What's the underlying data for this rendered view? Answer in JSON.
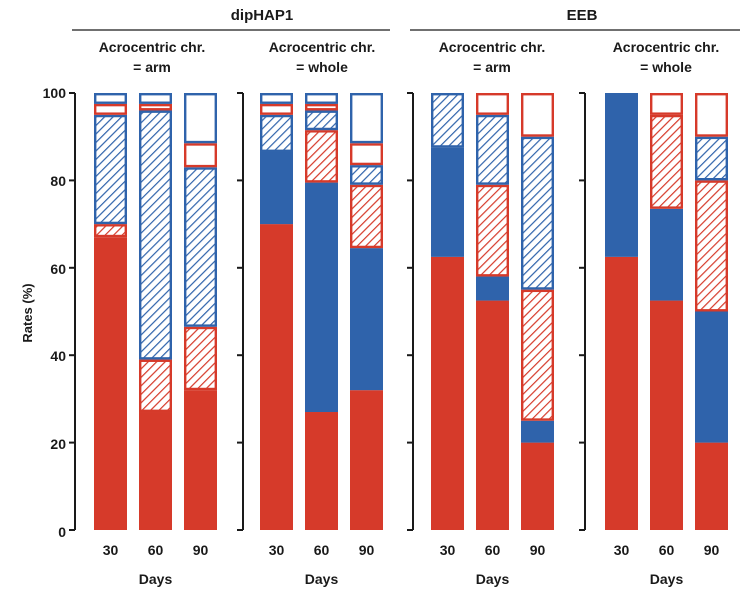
{
  "figure": {
    "group_titles": [
      "dipHAP1",
      "EEB"
    ],
    "group_title_colors": [
      "#7f87b8",
      "#8c8c8c"
    ],
    "ylabel": "Rates (%)",
    "xlabel": "Days",
    "yticks": [
      "0",
      "20",
      "40",
      "60",
      "80",
      "100"
    ]
  },
  "colors": {
    "red": "#d63a2a",
    "blue": "#2f63ab"
  },
  "chart_data": [
    {
      "type": "bar",
      "stacked": true,
      "group": "dipHAP1",
      "title": "Acrocentric chr.\n= arm",
      "categories": [
        "30",
        "60",
        "90"
      ],
      "xlabel": "Days",
      "ylabel": "Rates (%)",
      "ylim": [
        0,
        100
      ],
      "segments": [
        [
          {
            "value": 67,
            "color": "red",
            "style": "solid"
          },
          {
            "value": 3,
            "color": "red",
            "style": "hatched"
          },
          {
            "value": 25,
            "color": "blue",
            "style": "hatched"
          },
          {
            "value": 2.5,
            "color": "red",
            "style": "outline"
          },
          {
            "value": 2.5,
            "color": "blue",
            "style": "outline"
          }
        ],
        [
          {
            "value": 27,
            "color": "red",
            "style": "solid"
          },
          {
            "value": 12,
            "color": "red",
            "style": "hatched"
          },
          {
            "value": 57,
            "color": "blue",
            "style": "hatched"
          },
          {
            "value": 1.5,
            "color": "red",
            "style": "outline"
          },
          {
            "value": 2.5,
            "color": "blue",
            "style": "outline"
          }
        ],
        [
          {
            "value": 32,
            "color": "red",
            "style": "solid"
          },
          {
            "value": 14.5,
            "color": "red",
            "style": "hatched"
          },
          {
            "value": 36.5,
            "color": "blue",
            "style": "hatched"
          },
          {
            "value": 5.5,
            "color": "red",
            "style": "outline"
          },
          {
            "value": 11.5,
            "color": "blue",
            "style": "outline"
          }
        ]
      ]
    },
    {
      "type": "bar",
      "stacked": true,
      "group": "dipHAP1",
      "title": "Acrocentric chr.\n= whole",
      "categories": [
        "30",
        "60",
        "90"
      ],
      "xlabel": "Days",
      "ylabel": "Rates (%)",
      "ylim": [
        0,
        100
      ],
      "segments": [
        [
          {
            "value": 70,
            "color": "red",
            "style": "solid"
          },
          {
            "value": 16.5,
            "color": "blue",
            "style": "solid"
          },
          {
            "value": 8.5,
            "color": "blue",
            "style": "hatched"
          },
          {
            "value": 2.5,
            "color": "red",
            "style": "outline"
          },
          {
            "value": 2.5,
            "color": "blue",
            "style": "outline"
          }
        ],
        [
          {
            "value": 27,
            "color": "red",
            "style": "solid"
          },
          {
            "value": 52.5,
            "color": "blue",
            "style": "solid"
          },
          {
            "value": 12,
            "color": "red",
            "style": "hatched"
          },
          {
            "value": 4.5,
            "color": "blue",
            "style": "hatched"
          },
          {
            "value": 1.5,
            "color": "red",
            "style": "outline"
          },
          {
            "value": 2.5,
            "color": "blue",
            "style": "outline"
          }
        ],
        [
          {
            "value": 32,
            "color": "red",
            "style": "solid"
          },
          {
            "value": 32.5,
            "color": "blue",
            "style": "solid"
          },
          {
            "value": 14.5,
            "color": "red",
            "style": "hatched"
          },
          {
            "value": 4.5,
            "color": "blue",
            "style": "hatched"
          },
          {
            "value": 5,
            "color": "red",
            "style": "outline"
          },
          {
            "value": 11.5,
            "color": "blue",
            "style": "outline"
          }
        ]
      ]
    },
    {
      "type": "bar",
      "stacked": true,
      "group": "EEB",
      "title": "Acrocentric chr.\n= arm",
      "categories": [
        "30",
        "60",
        "90"
      ],
      "xlabel": "Days",
      "ylabel": "Rates (%)",
      "ylim": [
        0,
        100
      ],
      "segments": [
        [
          {
            "value": 62.5,
            "color": "red",
            "style": "solid"
          },
          {
            "value": 25,
            "color": "blue",
            "style": "solid"
          },
          {
            "value": 12.5,
            "color": "blue",
            "style": "hatched"
          }
        ],
        [
          {
            "value": 52.5,
            "color": "red",
            "style": "solid"
          },
          {
            "value": 5.5,
            "color": "blue",
            "style": "solid"
          },
          {
            "value": 21,
            "color": "red",
            "style": "hatched"
          },
          {
            "value": 16,
            "color": "blue",
            "style": "hatched"
          },
          {
            "value": 5,
            "color": "red",
            "style": "outline"
          }
        ],
        [
          {
            "value": 20,
            "color": "red",
            "style": "solid"
          },
          {
            "value": 5,
            "color": "blue",
            "style": "solid"
          },
          {
            "value": 30,
            "color": "red",
            "style": "hatched"
          },
          {
            "value": 35,
            "color": "blue",
            "style": "hatched"
          },
          {
            "value": 10,
            "color": "red",
            "style": "outline"
          }
        ]
      ]
    },
    {
      "type": "bar",
      "stacked": true,
      "group": "EEB",
      "title": "Acrocentric chr.\n= whole",
      "categories": [
        "30",
        "60",
        "90"
      ],
      "xlabel": "Days",
      "ylabel": "Rates (%)",
      "ylim": [
        0,
        100
      ],
      "segments": [
        [
          {
            "value": 62.5,
            "color": "red",
            "style": "solid"
          },
          {
            "value": 37.5,
            "color": "blue",
            "style": "solid"
          }
        ],
        [
          {
            "value": 52.5,
            "color": "red",
            "style": "solid"
          },
          {
            "value": 21,
            "color": "blue",
            "style": "solid"
          },
          {
            "value": 21.5,
            "color": "red",
            "style": "hatched"
          },
          {
            "value": 5,
            "color": "red",
            "style": "outline"
          }
        ],
        [
          {
            "value": 20,
            "color": "red",
            "style": "solid"
          },
          {
            "value": 30,
            "color": "blue",
            "style": "solid"
          },
          {
            "value": 30,
            "color": "red",
            "style": "hatched"
          },
          {
            "value": 10,
            "color": "blue",
            "style": "hatched"
          },
          {
            "value": 10,
            "color": "red",
            "style": "outline"
          }
        ]
      ]
    }
  ]
}
